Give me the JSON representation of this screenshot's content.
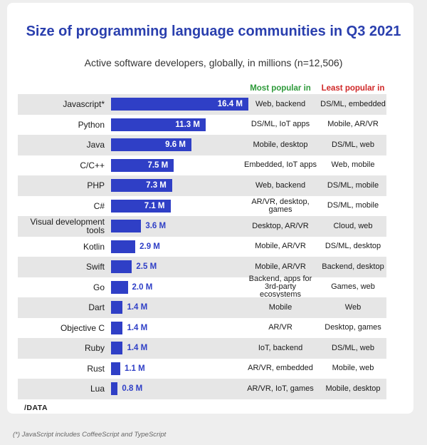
{
  "chart_data": {
    "type": "bar",
    "orientation": "horizontal",
    "title": "Size of programming language communities in Q3 2021",
    "subtitle": "Active software developers, globally, in millions (n=12,506)",
    "column_headers": {
      "most": "Most popular in",
      "least": "Least popular in"
    },
    "categories": [
      "Javascript*",
      "Python",
      "Java",
      "C/C++",
      "PHP",
      "C#",
      "Visual development tools",
      "Kotlin",
      "Swift",
      "Go",
      "Dart",
      "Objective C",
      "Ruby",
      "Rust",
      "Lua"
    ],
    "values": [
      16.4,
      11.3,
      9.6,
      7.5,
      7.3,
      7.1,
      3.6,
      2.9,
      2.5,
      2.0,
      1.4,
      1.4,
      1.4,
      1.1,
      0.8
    ],
    "value_labels": [
      "16.4 M",
      "11.3 M",
      "9.6 M",
      "7.5 M",
      "7.3 M",
      "7.1 M",
      "3.6 M",
      "2.9 M",
      "2.5 M",
      "2.0 M",
      "1.4 M",
      "1.4 M",
      "1.4 M",
      "1.1 M",
      "0.8 M"
    ],
    "most_popular_in": [
      "Web, backend",
      "DS/ML, IoT apps",
      "Mobile, desktop",
      "Embedded, IoT apps",
      "Web, backend",
      "AR/VR, desktop, games",
      "Desktop, AR/VR",
      "Mobile, AR/VR",
      "Mobile, AR/VR",
      "Backend, apps for 3rd-party ecosystems",
      "Mobile",
      "AR/VR",
      "IoT, backend",
      "AR/VR, embedded",
      "AR/VR, IoT, games"
    ],
    "least_popular_in": [
      "DS/ML, embedded",
      "Mobile, AR/VR",
      "DS/ML, web",
      "Web, mobile",
      "DS/ML, mobile",
      "DS/ML, mobile",
      "Cloud, web",
      "DS/ML, desktop",
      "Backend, desktop",
      "Games, web",
      "Web",
      "Desktop, games",
      "DS/ML, web",
      "Mobile, web",
      "Mobile, desktop"
    ],
    "xlim": [
      0,
      17
    ],
    "bar_color": "#2f3fc6",
    "shaded_rows": "alternate"
  },
  "brand": {
    "logo": "/DATA"
  },
  "footnote": "(*) JavaScript includes CoffeeScript and TypeScript",
  "colors": {
    "title": "#2a3fae",
    "most_header": "#2e9a3a",
    "least_header": "#d02828"
  }
}
